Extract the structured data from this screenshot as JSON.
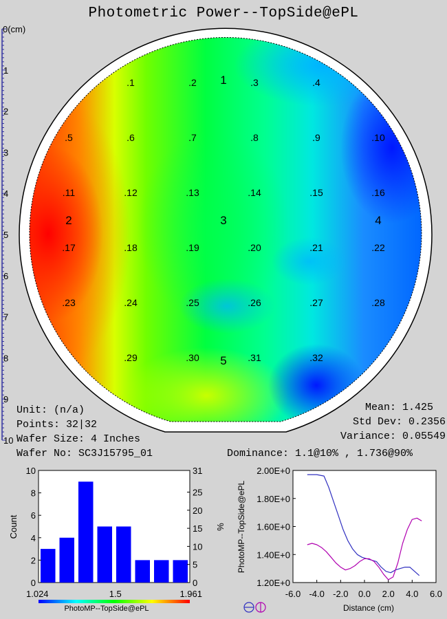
{
  "title": "Photometric Power--TopSide@ePL",
  "ruler": {
    "label": "0(cm)",
    "ticks": [
      "1",
      "2",
      "3",
      "4",
      "5",
      "6",
      "7",
      "8",
      "9",
      "10"
    ]
  },
  "wafer": {
    "points": [
      {
        "label": ".1",
        "x": 1.9,
        "y": 1.2
      },
      {
        "label": ".2",
        "x": 2.8,
        "y": 1.2
      },
      {
        "label": ".3",
        "x": 3.7,
        "y": 1.2
      },
      {
        "label": ".4",
        "x": 4.6,
        "y": 1.2
      },
      {
        "label": ".5",
        "x": 1.0,
        "y": 2.2
      },
      {
        "label": ".6",
        "x": 1.9,
        "y": 2.2
      },
      {
        "label": ".7",
        "x": 2.8,
        "y": 2.2
      },
      {
        "label": ".8",
        "x": 3.7,
        "y": 2.2
      },
      {
        "label": ".9",
        "x": 4.6,
        "y": 2.2
      },
      {
        "label": ".10",
        "x": 5.5,
        "y": 2.2
      },
      {
        "label": ".11",
        "x": 1.0,
        "y": 3.2
      },
      {
        "label": ".12",
        "x": 1.9,
        "y": 3.2
      },
      {
        "label": ".13",
        "x": 2.8,
        "y": 3.2
      },
      {
        "label": ".14",
        "x": 3.7,
        "y": 3.2
      },
      {
        "label": ".15",
        "x": 4.6,
        "y": 3.2
      },
      {
        "label": ".16",
        "x": 5.5,
        "y": 3.2
      },
      {
        "label": ".17",
        "x": 1.0,
        "y": 4.2
      },
      {
        "label": ".18",
        "x": 1.9,
        "y": 4.2
      },
      {
        "label": ".19",
        "x": 2.8,
        "y": 4.2
      },
      {
        "label": ".20",
        "x": 3.7,
        "y": 4.2
      },
      {
        "label": ".21",
        "x": 4.6,
        "y": 4.2
      },
      {
        "label": ".22",
        "x": 5.5,
        "y": 4.2
      },
      {
        "label": ".23",
        "x": 1.0,
        "y": 5.2
      },
      {
        "label": ".24",
        "x": 1.9,
        "y": 5.2
      },
      {
        "label": ".25",
        "x": 2.8,
        "y": 5.2
      },
      {
        "label": ".26",
        "x": 3.7,
        "y": 5.2
      },
      {
        "label": ".27",
        "x": 4.6,
        "y": 5.2
      },
      {
        "label": ".28",
        "x": 5.5,
        "y": 5.2
      },
      {
        "label": ".29",
        "x": 1.9,
        "y": 6.2
      },
      {
        "label": ".30",
        "x": 2.8,
        "y": 6.2
      },
      {
        "label": ".31",
        "x": 3.7,
        "y": 6.2
      },
      {
        "label": ".32",
        "x": 4.6,
        "y": 6.2
      }
    ],
    "region_labels": [
      {
        "label": "1",
        "x": 3.25,
        "y": 1.15
      },
      {
        "label": "2",
        "x": 1.0,
        "y": 3.7
      },
      {
        "label": "3",
        "x": 3.25,
        "y": 3.7
      },
      {
        "label": "4",
        "x": 5.5,
        "y": 3.7
      },
      {
        "label": "5",
        "x": 3.25,
        "y": 6.25
      }
    ]
  },
  "stats": {
    "unit": "Unit: (n/a)",
    "points": "Points: 32|32",
    "wafer_size": "Wafer Size: 4 Inches",
    "wafer_no": "Wafer No: SC3J15795_01",
    "mean": "Mean: 1.425",
    "std_dev": "Std Dev: 0.2356",
    "variance": "Variance: 0.05549",
    "dominance": "Dominance: 1.1@10% , 1.736@90%"
  },
  "colors": {
    "bar": "#0000ff",
    "scan_line_1": "#3030c0",
    "scan_line_2": "#b000b0",
    "colorbar": [
      "#0000ff",
      "#00ffff",
      "#00ff00",
      "#ffff00",
      "#ff0000"
    ]
  },
  "chart_data": [
    {
      "type": "bar",
      "title": "",
      "xlabel": "PhotoMP--TopSide@ePL",
      "ylabel": "Count",
      "ylabel_right": "%",
      "x_tick_labels": [
        "1.024",
        "1.5",
        "1.961"
      ],
      "xlim": [
        1.024,
        1.961
      ],
      "ylim": [
        0,
        10
      ],
      "y_ticks": [
        "0",
        "2",
        "4",
        "6",
        "8",
        "10"
      ],
      "y2lim": [
        0,
        31
      ],
      "y2_ticks": [
        "0",
        "5",
        "10",
        "15",
        "20",
        "25",
        "31"
      ],
      "values": [
        3,
        4,
        9,
        5,
        5,
        2,
        2,
        2
      ],
      "grid": false
    },
    {
      "type": "line",
      "title": "",
      "xlabel": "Distance (cm)",
      "ylabel": "PhotoMP--TopSide@ePL",
      "xlim": [
        -6.0,
        6.0
      ],
      "ylim": [
        1.2,
        2.0
      ],
      "x_ticks": [
        "-6.0",
        "-4.0",
        "-2.0",
        "0.0",
        "2.0",
        "4.0",
        "6.0"
      ],
      "y_ticks": [
        "1.20E+0",
        "1.40E+0",
        "1.60E+0",
        "1.80E+0",
        "2.00E+0"
      ],
      "series": [
        {
          "x": [
            -4.8,
            -4.0,
            -3.4,
            -3.0,
            -2.6,
            -2.2,
            -1.8,
            -1.4,
            -1.0,
            -0.6,
            -0.2,
            0.2,
            0.6,
            1.0,
            1.4,
            1.8,
            2.2,
            2.6,
            3.0,
            3.4,
            3.8,
            4.2,
            4.6
          ],
          "y": [
            1.97,
            1.97,
            1.96,
            1.88,
            1.78,
            1.68,
            1.58,
            1.5,
            1.44,
            1.4,
            1.38,
            1.37,
            1.36,
            1.35,
            1.31,
            1.28,
            1.27,
            1.29,
            1.3,
            1.31,
            1.31,
            1.28,
            1.25
          ]
        },
        {
          "x": [
            -4.8,
            -4.4,
            -4.0,
            -3.6,
            -3.2,
            -2.8,
            -2.4,
            -2.0,
            -1.6,
            -1.2,
            -0.8,
            -0.4,
            0.0,
            0.4,
            0.8,
            1.2,
            1.6,
            2.0,
            2.4,
            2.8,
            3.2,
            3.6,
            4.0,
            4.4,
            4.8
          ],
          "y": [
            1.47,
            1.48,
            1.47,
            1.45,
            1.42,
            1.38,
            1.34,
            1.31,
            1.29,
            1.3,
            1.32,
            1.35,
            1.37,
            1.37,
            1.35,
            1.31,
            1.26,
            1.22,
            1.24,
            1.34,
            1.48,
            1.58,
            1.65,
            1.66,
            1.64
          ]
        }
      ]
    }
  ]
}
